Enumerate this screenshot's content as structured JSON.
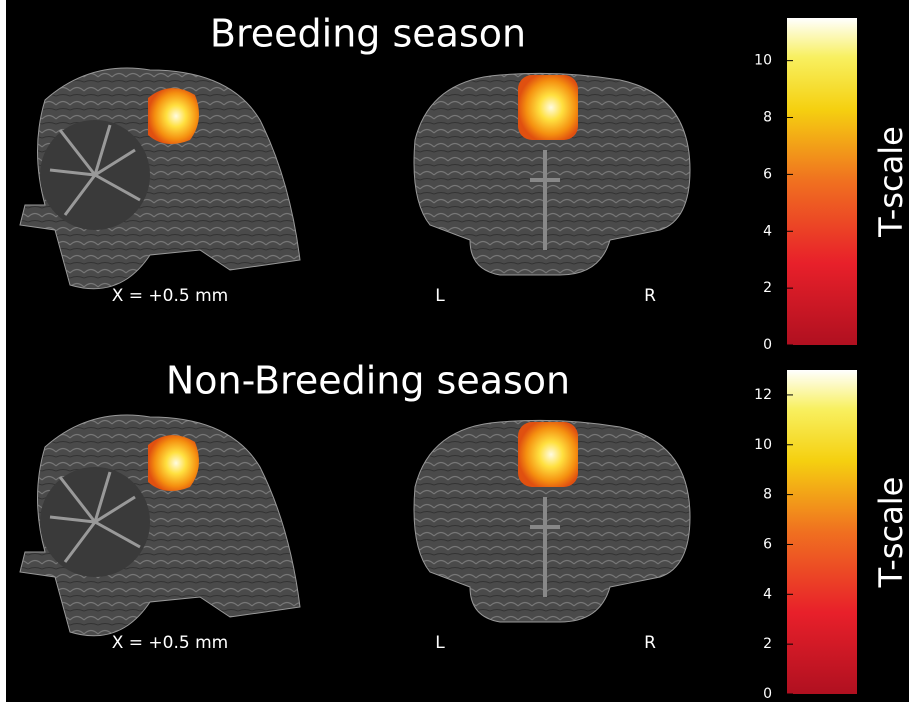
{
  "panels": [
    {
      "title": "Breeding season",
      "sagittal_label": "X = +0.5 mm",
      "coronal_left": "L",
      "coronal_right": "R",
      "colorbar": {
        "label": "T-scale",
        "lim": [
          0,
          11.5
        ],
        "ticks": [
          0,
          2,
          4,
          6,
          8,
          10
        ]
      }
    },
    {
      "title": "Non-Breeding season",
      "sagittal_label": "X = +0.5 mm",
      "coronal_left": "L",
      "coronal_right": "R",
      "colorbar": {
        "label": "T-scale",
        "lim": [
          0,
          13
        ],
        "ticks": [
          0,
          2,
          4,
          6,
          8,
          10,
          12
        ]
      }
    }
  ]
}
